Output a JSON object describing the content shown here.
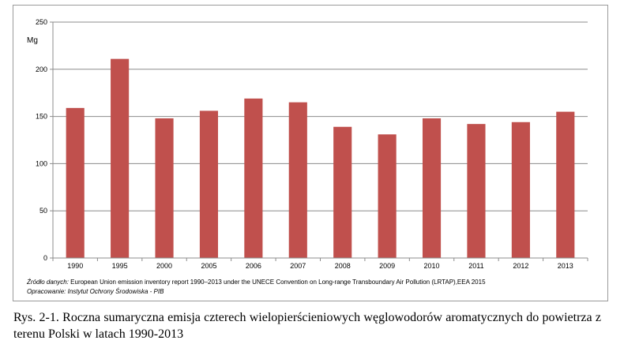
{
  "chart_data": {
    "type": "bar",
    "unit_label": "Mg",
    "categories": [
      "1990",
      "1995",
      "2000",
      "2005",
      "2006",
      "2007",
      "2008",
      "2009",
      "2010",
      "2011",
      "2012",
      "2013"
    ],
    "values": [
      159,
      211,
      148,
      156,
      169,
      165,
      139,
      131,
      148,
      142,
      144,
      155
    ],
    "ylim": [
      0,
      250
    ],
    "yticks": [
      0,
      50,
      100,
      150,
      200,
      250
    ],
    "grid": true,
    "bar_color": "#c0504d"
  },
  "source": {
    "data_label": "Źródło danych:",
    "data_text": "European Union emission inventory report 1990–2013 under the UNECE  Convention on Long-range Transboundary Air Pollution (LRTAP),EEA 2015",
    "prep_label": "Opracowanie:",
    "prep_text": "Instytut Ochrony Środowiska - PIB"
  },
  "caption": "Rys. 2-1. Roczna sumaryczna emisja czterech wielopierścieniowych węglowodorów aromatycznych do powietrza z terenu Polski w latach 1990-2013"
}
